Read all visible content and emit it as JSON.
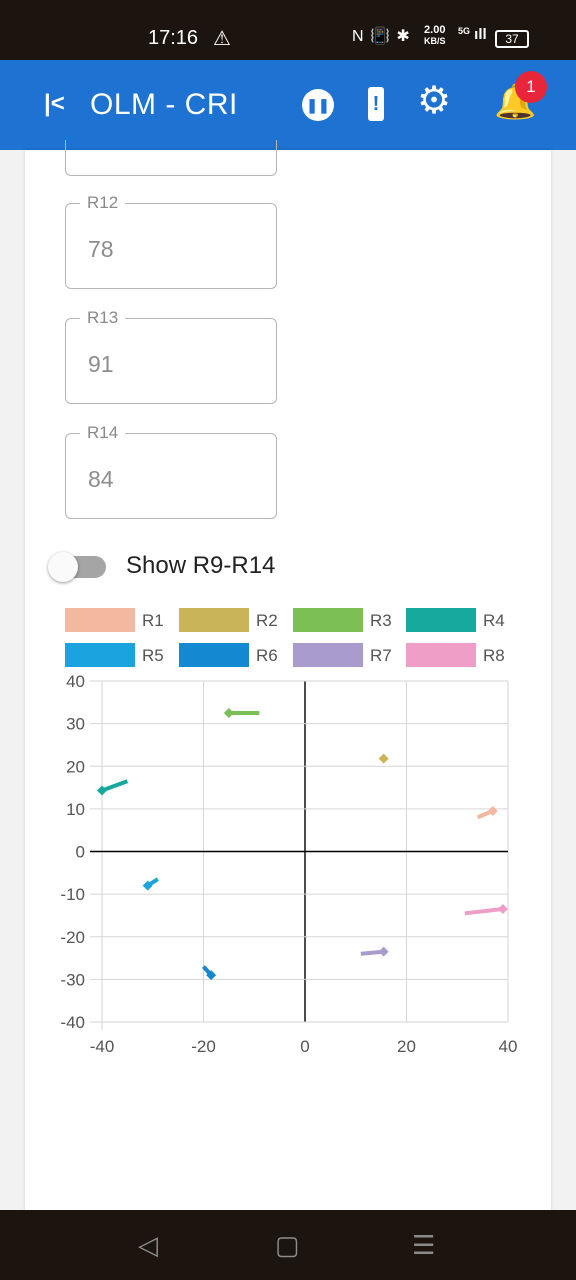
{
  "status_bar": {
    "time": "17:16",
    "warning_icon": "warning-icon",
    "icons": "N 📳 ✱",
    "speed_value": "2.00",
    "speed_unit": "KB/S",
    "network": "5G",
    "battery": "37"
  },
  "app_bar": {
    "back_icon": "collapse-back-icon",
    "title": "OLM - CRI",
    "pause_icon": "pause-icon",
    "alert_icon": "battery-alert-icon",
    "settings_icon": "gear-icon",
    "notifications_icon": "bell-icon",
    "notification_count": "1"
  },
  "fields": [
    {
      "label": "R12",
      "value": "78"
    },
    {
      "label": "R13",
      "value": "91"
    },
    {
      "label": "R14",
      "value": "84"
    }
  ],
  "toggle": {
    "label": "Show R9-R14",
    "state": "off"
  },
  "chart_data": {
    "type": "scatter",
    "title": "",
    "xlabel": "",
    "ylabel": "",
    "xlim": [
      -40,
      40
    ],
    "ylim": [
      -40,
      40
    ],
    "x_ticks": [
      "-40",
      "-20",
      "0",
      "20",
      "40"
    ],
    "y_ticks": [
      "40",
      "30",
      "20",
      "10",
      "0",
      "-10",
      "-20",
      "-30",
      "-40"
    ],
    "grid": true,
    "legend_position": "top",
    "series": [
      {
        "name": "R1",
        "color": "#f2b8a0",
        "points": [
          [
            34,
            8
          ],
          [
            37,
            9.5
          ]
        ]
      },
      {
        "name": "R2",
        "color": "#c9b458",
        "points": [
          [
            15.5,
            21.8
          ]
        ]
      },
      {
        "name": "R3",
        "color": "#7bbf55",
        "points": [
          [
            -9,
            32.5
          ],
          [
            -15,
            32.5
          ]
        ]
      },
      {
        "name": "R4",
        "color": "#17a89e",
        "points": [
          [
            -35,
            16.5
          ],
          [
            -40,
            14.3
          ]
        ]
      },
      {
        "name": "R5",
        "color": "#1ba3e0",
        "points": [
          [
            -29,
            -6.5
          ],
          [
            -31,
            -8
          ]
        ]
      },
      {
        "name": "R6",
        "color": "#1488d0",
        "points": [
          [
            -20,
            -27
          ],
          [
            -18.5,
            -29
          ]
        ]
      },
      {
        "name": "R7",
        "color": "#a99ccc",
        "points": [
          [
            11,
            -24
          ],
          [
            15.5,
            -23.5
          ]
        ]
      },
      {
        "name": "R8",
        "color": "#ee9ec7",
        "points": [
          [
            31.5,
            -14.5
          ],
          [
            39,
            -13.5
          ]
        ]
      }
    ]
  },
  "nav_bar": {
    "back": "◁",
    "home": "▢",
    "menu": "☰"
  }
}
